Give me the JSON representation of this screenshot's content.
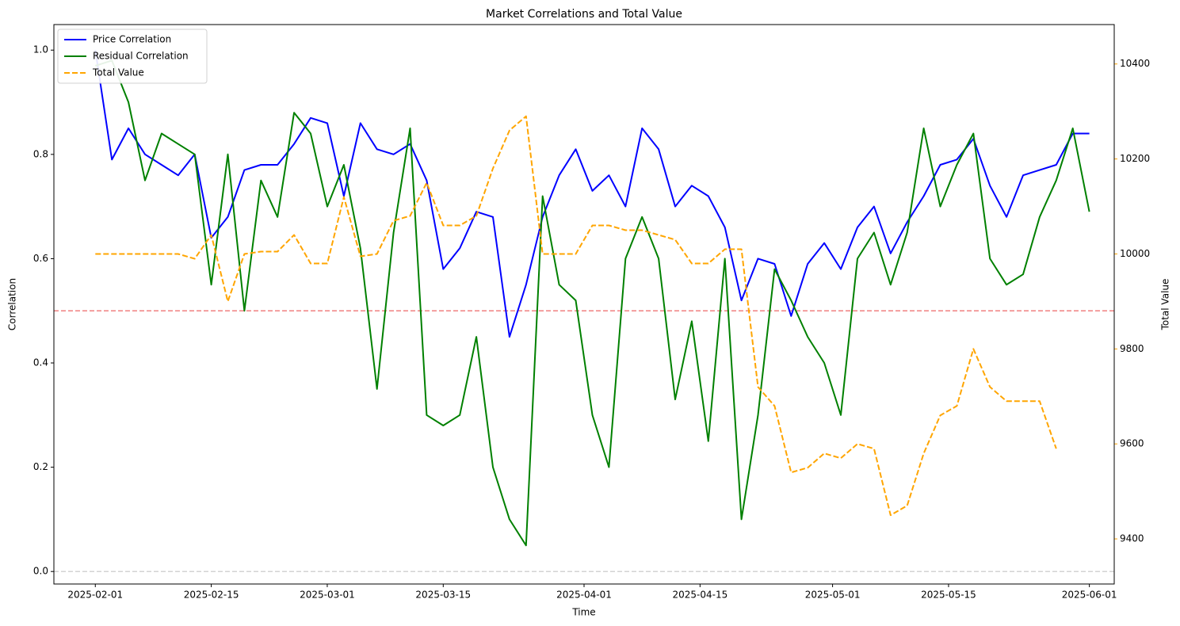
{
  "chart_data": {
    "type": "line",
    "title": "Market Correlations and Total Value",
    "xlabel": "Time",
    "ylabel": "Correlation",
    "y2label": "Total Value",
    "x": [
      "2025-02-01",
      "2025-02-03",
      "2025-02-05",
      "2025-02-07",
      "2025-02-09",
      "2025-02-11",
      "2025-02-13",
      "2025-02-15",
      "2025-02-17",
      "2025-02-19",
      "2025-02-21",
      "2025-02-23",
      "2025-02-25",
      "2025-02-27",
      "2025-03-01",
      "2025-03-03",
      "2025-03-05",
      "2025-03-07",
      "2025-03-09",
      "2025-03-11",
      "2025-03-13",
      "2025-03-15",
      "2025-03-17",
      "2025-03-19",
      "2025-03-21",
      "2025-03-23",
      "2025-03-25",
      "2025-03-27",
      "2025-03-29",
      "2025-03-31",
      "2025-04-02",
      "2025-04-04",
      "2025-04-06",
      "2025-04-08",
      "2025-04-10",
      "2025-04-12",
      "2025-04-14",
      "2025-04-16",
      "2025-04-18",
      "2025-04-20",
      "2025-04-22",
      "2025-04-24",
      "2025-04-26",
      "2025-04-28",
      "2025-04-30",
      "2025-05-02",
      "2025-05-04",
      "2025-05-06",
      "2025-05-08",
      "2025-05-10",
      "2025-05-12",
      "2025-05-14",
      "2025-05-16",
      "2025-05-18",
      "2025-05-20",
      "2025-05-22",
      "2025-05-24",
      "2025-05-26",
      "2025-05-28",
      "2025-05-30",
      "2025-06-01"
    ],
    "series": [
      {
        "name": "Price Correlation",
        "color": "#0000ff",
        "linestyle": "solid",
        "values": [
          1.0,
          0.79,
          0.85,
          0.8,
          0.78,
          0.76,
          0.8,
          0.64,
          0.68,
          0.77,
          0.78,
          0.78,
          0.82,
          0.87,
          0.86,
          0.72,
          0.86,
          0.81,
          0.8,
          0.82,
          0.75,
          0.58,
          0.62,
          0.69,
          0.68,
          0.45,
          0.55,
          0.68,
          0.76,
          0.81,
          0.73,
          0.76,
          0.7,
          0.85,
          0.81,
          0.7,
          0.74,
          0.72,
          0.66,
          0.52,
          0.6,
          0.59,
          0.49,
          0.59,
          0.63,
          0.58,
          0.66,
          0.7,
          0.61,
          0.67,
          0.72,
          0.78,
          0.79,
          0.83,
          0.74,
          0.68,
          0.76,
          0.77,
          0.78,
          0.84,
          0.84
        ]
      },
      {
        "name": "Residual Correlation",
        "color": "#008000",
        "linestyle": "solid",
        "values": [
          0.97,
          0.98,
          0.9,
          0.75,
          0.84,
          0.82,
          0.8,
          0.55,
          0.8,
          0.5,
          0.75,
          0.68,
          0.88,
          0.84,
          0.7,
          0.78,
          0.62,
          0.35,
          0.65,
          0.85,
          0.3,
          0.28,
          0.3,
          0.45,
          0.2,
          0.1,
          0.05,
          0.72,
          0.55,
          0.52,
          0.3,
          0.2,
          0.6,
          0.68,
          0.6,
          0.33,
          0.48,
          0.25,
          0.6,
          0.1,
          0.3,
          0.58,
          0.52,
          0.45,
          0.4,
          0.3,
          0.6,
          0.65,
          0.55,
          0.65,
          0.85,
          0.7,
          0.78,
          0.84,
          0.6,
          0.55,
          0.57,
          0.68,
          0.75,
          0.85,
          0.69
        ]
      },
      {
        "name": "Total Value",
        "color": "#ffa500",
        "linestyle": "dashed",
        "axis": "y2",
        "values": [
          10000,
          10000,
          10000,
          10000,
          10000,
          10000,
          9990,
          10040,
          9900,
          10000,
          10005,
          10005,
          10040,
          9980,
          9980,
          10120,
          9995,
          10000,
          10070,
          10080,
          10150,
          10060,
          10060,
          10080,
          10180,
          10260,
          10290,
          10000,
          10000,
          10000,
          10060,
          10060,
          10050,
          10050,
          10040,
          10030,
          9980,
          9980,
          10010,
          10010,
          9720,
          9680,
          9540,
          9550,
          9580,
          9570,
          9600,
          9590,
          9450,
          9470,
          9580,
          9660,
          9680,
          9800,
          9720,
          9690,
          9690,
          9690,
          9590,
          null,
          null
        ]
      }
    ],
    "xlim": [
      "2025-01-27",
      "2025-06-04"
    ],
    "xticks": [
      "2025-02-01",
      "2025-02-15",
      "2025-03-01",
      "2025-03-15",
      "2025-04-01",
      "2025-04-15",
      "2025-05-01",
      "2025-05-15",
      "2025-06-01"
    ],
    "ylim": [
      -0.024,
      1.049
    ],
    "yticks": [
      {
        "value": 0,
        "label": "0.0"
      },
      0.2,
      0.4,
      0.6,
      0.8,
      {
        "value": 1,
        "label": "1.0"
      }
    ],
    "y2lim": [
      9305,
      10483
    ],
    "y2ticks": [
      9400,
      9600,
      9800,
      10000,
      10200,
      10400
    ],
    "y2color": "#ffa500",
    "hlines": [
      {
        "value": 0.5,
        "color": "#f08080"
      },
      {
        "value": 0,
        "color": "#d3d3d3"
      }
    ],
    "legend": "upper left",
    "grid": false
  }
}
